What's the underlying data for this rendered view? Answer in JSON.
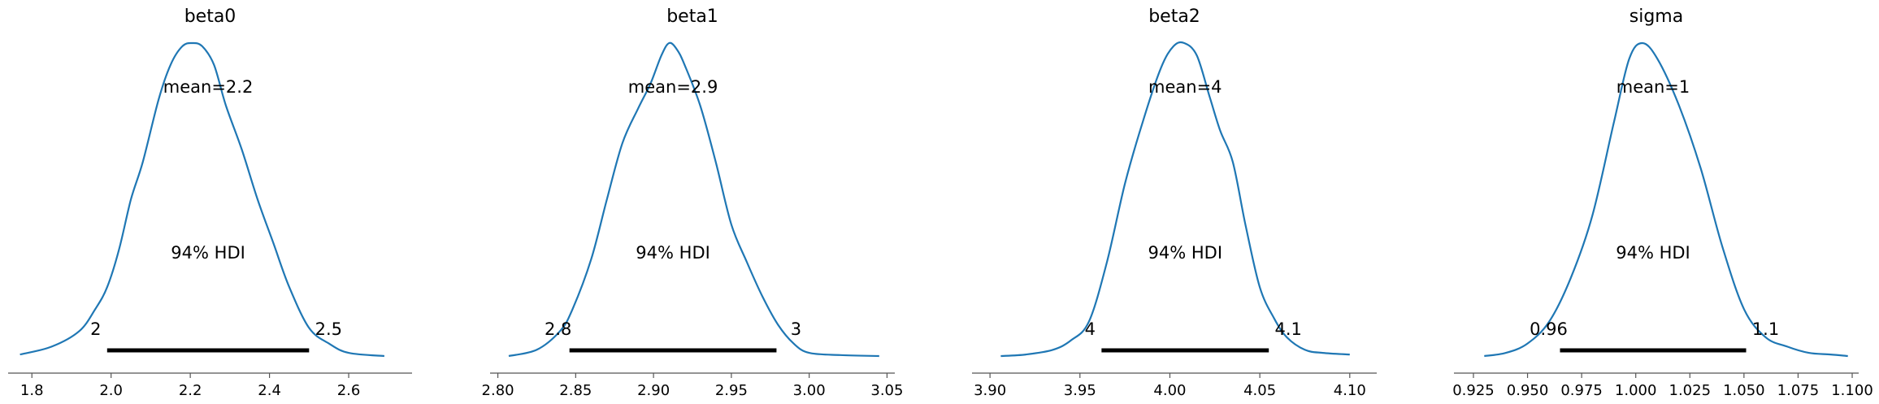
{
  "chart_data": [
    {
      "type": "area",
      "title": "beta0",
      "xlim": [
        1.74,
        2.76
      ],
      "xticks": [
        1.8,
        2.0,
        2.2,
        2.4,
        2.6
      ],
      "xtick_labels": [
        "1.8",
        "2.0",
        "2.2",
        "2.4",
        "2.6"
      ],
      "mean_label": "mean=2.2",
      "hdi_label": "94% HDI",
      "hdi": [
        1.99,
        2.5
      ],
      "hdi_lower_label": "2",
      "hdi_upper_label": "2.5",
      "density": {
        "x": [
          1.77,
          1.85,
          1.92,
          1.96,
          1.99,
          2.02,
          2.05,
          2.08,
          2.12,
          2.15,
          2.18,
          2.205,
          2.23,
          2.26,
          2.29,
          2.33,
          2.37,
          2.41,
          2.45,
          2.5,
          2.55,
          2.6,
          2.69
        ],
        "y": [
          0.005,
          0.03,
          0.08,
          0.15,
          0.22,
          0.34,
          0.5,
          0.62,
          0.82,
          0.93,
          0.99,
          1.0,
          0.99,
          0.93,
          0.8,
          0.66,
          0.5,
          0.36,
          0.22,
          0.09,
          0.04,
          0.01,
          0.0
        ]
      }
    },
    {
      "type": "area",
      "title": "beta1",
      "xlim": [
        2.795,
        3.055
      ],
      "xticks": [
        2.8,
        2.85,
        2.9,
        2.95,
        3.0,
        3.05
      ],
      "xtick_labels": [
        "2.80",
        "2.85",
        "2.90",
        "2.95",
        "3.00",
        "3.05"
      ],
      "mean_label": "mean=2.9",
      "hdi_label": "94% HDI",
      "hdi": [
        2.846,
        2.979
      ],
      "hdi_lower_label": "2.8",
      "hdi_upper_label": "3",
      "density": {
        "x": [
          2.807,
          2.825,
          2.84,
          2.848,
          2.86,
          2.87,
          2.88,
          2.89,
          2.898,
          2.905,
          2.91,
          2.915,
          2.92,
          2.93,
          2.94,
          2.95,
          2.96,
          2.97,
          2.98,
          2.99,
          3.0,
          3.02,
          3.045
        ],
        "y": [
          0.0,
          0.02,
          0.08,
          0.15,
          0.31,
          0.5,
          0.68,
          0.79,
          0.87,
          0.96,
          1.0,
          0.98,
          0.93,
          0.8,
          0.62,
          0.42,
          0.3,
          0.19,
          0.1,
          0.04,
          0.01,
          0.003,
          0.0
        ]
      }
    },
    {
      "type": "area",
      "title": "beta2",
      "xlim": [
        3.89,
        4.115
      ],
      "xticks": [
        3.9,
        3.95,
        4.0,
        4.05,
        4.1
      ],
      "xtick_labels": [
        "3.90",
        "3.95",
        "4.00",
        "4.05",
        "4.10"
      ],
      "mean_label": "mean=4",
      "hdi_label": "94% HDI",
      "hdi": [
        3.962,
        4.055
      ],
      "hdi_lower_label": "4",
      "hdi_upper_label": "4.1",
      "density": {
        "x": [
          3.906,
          3.92,
          3.935,
          3.945,
          3.955,
          3.965,
          3.975,
          3.985,
          3.995,
          4.002,
          4.008,
          4.015,
          4.022,
          4.028,
          4.035,
          4.042,
          4.05,
          4.058,
          4.065,
          4.075,
          4.085,
          4.1
        ],
        "y": [
          0.0,
          0.005,
          0.02,
          0.05,
          0.11,
          0.3,
          0.55,
          0.75,
          0.92,
          0.99,
          1.0,
          0.96,
          0.83,
          0.72,
          0.62,
          0.42,
          0.22,
          0.12,
          0.06,
          0.02,
          0.01,
          0.005
        ]
      }
    },
    {
      "type": "area",
      "title": "sigma",
      "xlim": [
        0.916,
        1.103
      ],
      "xticks": [
        0.925,
        0.95,
        0.975,
        1.0,
        1.025,
        1.05,
        1.075,
        1.1
      ],
      "xtick_labels": [
        "0.925",
        "0.950",
        "0.975",
        "1.000",
        "1.025",
        "1.050",
        "1.075",
        "1.100"
      ],
      "mean_label": "mean=1",
      "hdi_label": "94% HDI",
      "hdi": [
        0.965,
        1.051
      ],
      "hdi_lower_label": "0.96",
      "hdi_upper_label": "1.1",
      "density": {
        "x": [
          0.93,
          0.94,
          0.95,
          0.96,
          0.97,
          0.98,
          0.99,
          0.997,
          1.003,
          1.01,
          1.02,
          1.03,
          1.04,
          1.05,
          1.06,
          1.07,
          1.08,
          1.09,
          1.098
        ],
        "y": [
          0.0,
          0.01,
          0.04,
          0.11,
          0.25,
          0.45,
          0.75,
          0.95,
          1.0,
          0.95,
          0.8,
          0.6,
          0.35,
          0.15,
          0.06,
          0.03,
          0.01,
          0.005,
          0.0
        ]
      }
    }
  ],
  "colors": {
    "density_line": "#1f77b4",
    "hdi_bar": "#000000",
    "axis": "#555555",
    "text": "#000000"
  }
}
